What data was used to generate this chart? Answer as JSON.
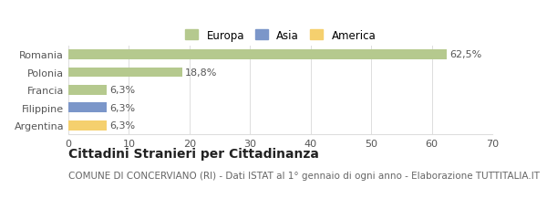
{
  "categories": [
    "Romania",
    "Polonia",
    "Francia",
    "Filippine",
    "Argentina"
  ],
  "values": [
    62.5,
    18.8,
    6.3,
    6.3,
    6.3
  ],
  "labels": [
    "62,5%",
    "18,8%",
    "6,3%",
    "6,3%",
    "6,3%"
  ],
  "bar_colors": [
    "#b5c98e",
    "#b5c98e",
    "#b5c98e",
    "#7b96c9",
    "#f5d06e"
  ],
  "legend_entries": [
    {
      "label": "Europa",
      "color": "#b5c98e"
    },
    {
      "label": "Asia",
      "color": "#7b96c9"
    },
    {
      "label": "America",
      "color": "#f5d06e"
    }
  ],
  "xlim": [
    0,
    70
  ],
  "xticks": [
    0,
    10,
    20,
    30,
    40,
    50,
    60,
    70
  ],
  "title": "Cittadini Stranieri per Cittadinanza",
  "subtitle": "COMUNE DI CONCERVIANO (RI) - Dati ISTAT al 1° gennaio di ogni anno - Elaborazione TUTTITALIA.IT",
  "background_color": "#ffffff",
  "grid_color": "#dddddd",
  "title_fontsize": 10,
  "subtitle_fontsize": 7.5,
  "label_fontsize": 8,
  "tick_fontsize": 8,
  "legend_fontsize": 8.5
}
